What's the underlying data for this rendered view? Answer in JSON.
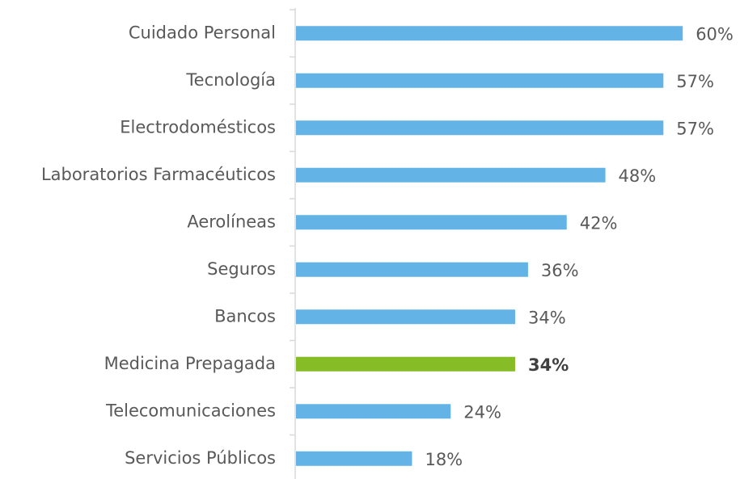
{
  "chart_data": {
    "type": "bar",
    "orientation": "horizontal",
    "categories": [
      "Cuidado Personal",
      "Tecnología",
      "Electrodomésticos",
      "Laboratorios Farmacéuticos",
      "Aerolíneas",
      "Seguros",
      "Bancos",
      "Medicina Prepagada",
      "Telecomunicaciones",
      "Servicios Públicos"
    ],
    "values": [
      60,
      57,
      57,
      48,
      42,
      36,
      34,
      34,
      24,
      18
    ],
    "value_labels": [
      "60%",
      "57%",
      "57%",
      "48%",
      "42%",
      "36%",
      "34%",
      "34%",
      "24%",
      "18%"
    ],
    "colors": [
      "#63b3e6",
      "#63b3e6",
      "#63b3e6",
      "#63b3e6",
      "#63b3e6",
      "#63b3e6",
      "#63b3e6",
      "#86bc25",
      "#63b3e6",
      "#63b3e6"
    ],
    "highlight": 7
  }
}
